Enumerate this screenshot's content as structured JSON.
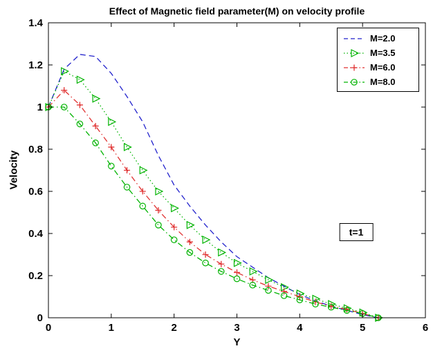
{
  "chart_data": {
    "type": "line",
    "title": "Effect of Magnetic field parameter(M) on velocity profile",
    "xlabel": "Y",
    "ylabel": "Velocity",
    "xlim": [
      0,
      6
    ],
    "ylim": [
      0,
      1.4
    ],
    "xticks": [
      0,
      1,
      2,
      3,
      4,
      5,
      6
    ],
    "yticks": [
      0,
      0.2,
      0.4,
      0.6,
      0.8,
      1,
      1.2,
      1.4
    ],
    "grid": false,
    "legend_position": "top-right",
    "annotation": {
      "text": "t=1",
      "x": 4.9,
      "y": 0.405
    },
    "x": [
      0,
      0.25,
      0.5,
      0.75,
      1,
      1.25,
      1.5,
      1.75,
      2,
      2.25,
      2.5,
      2.75,
      3,
      3.25,
      3.5,
      3.75,
      4,
      4.25,
      4.5,
      4.75,
      5,
      5.25
    ],
    "series": [
      {
        "name": "M=2.0",
        "color": "#2222cc",
        "linestyle": "dashed",
        "marker": "none",
        "values": [
          1.0,
          1.18,
          1.25,
          1.24,
          1.16,
          1.05,
          0.93,
          0.77,
          0.63,
          0.53,
          0.44,
          0.36,
          0.29,
          0.24,
          0.19,
          0.15,
          0.11,
          0.08,
          0.055,
          0.035,
          0.015,
          0.0
        ]
      },
      {
        "name": "M=3.5",
        "color": "#00b300",
        "linestyle": "dotted",
        "marker": "triangle-right",
        "values": [
          1.0,
          1.17,
          1.13,
          1.04,
          0.93,
          0.81,
          0.7,
          0.6,
          0.52,
          0.44,
          0.37,
          0.31,
          0.26,
          0.22,
          0.18,
          0.145,
          0.115,
          0.09,
          0.065,
          0.045,
          0.025,
          0.0
        ]
      },
      {
        "name": "M=6.0",
        "color": "#e03030",
        "linestyle": "dashdot",
        "marker": "plus",
        "values": [
          1.0,
          1.08,
          1.01,
          0.91,
          0.81,
          0.7,
          0.6,
          0.51,
          0.43,
          0.36,
          0.3,
          0.255,
          0.215,
          0.18,
          0.15,
          0.125,
          0.1,
          0.075,
          0.055,
          0.04,
          0.02,
          0.0
        ]
      },
      {
        "name": "M=8.0",
        "color": "#00b300",
        "linestyle": "dashdot",
        "marker": "circle",
        "values": [
          1.0,
          1.0,
          0.92,
          0.83,
          0.72,
          0.62,
          0.53,
          0.44,
          0.37,
          0.31,
          0.26,
          0.22,
          0.185,
          0.155,
          0.13,
          0.105,
          0.085,
          0.065,
          0.05,
          0.035,
          0.02,
          0.0
        ]
      }
    ]
  }
}
